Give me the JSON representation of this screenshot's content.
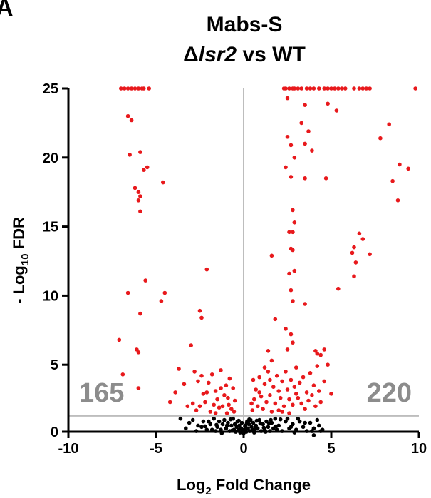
{
  "panel_label": "A",
  "chart_data": {
    "type": "scatter",
    "title_line1": "Mabs-S",
    "title_line2_prefix": "Δ",
    "title_line2_gene": "lsr2",
    "title_line2_suffix": " vs WT",
    "xlabel_main": "Log",
    "xlabel_sub": "2",
    "xlabel_rest": " Fold Change",
    "ylabel_main": "- Log",
    "ylabel_sub": "10",
    "ylabel_rest": " FDR",
    "xlim": [
      -10,
      10
    ],
    "ylim": [
      0,
      25
    ],
    "x_ticks": [
      -10,
      -5,
      0,
      5,
      10
    ],
    "y_ticks": [
      0,
      5,
      10,
      15,
      20,
      25
    ],
    "thresholds": {
      "fdr_line": 1.3,
      "fc_line": 0
    },
    "count_down": "165",
    "count_up": "220",
    "colors": {
      "significant": "#e8191c",
      "not_significant": "#000000",
      "threshold": "#bdbdbd"
    },
    "series": [
      {
        "color": "significant",
        "points": [
          [
            -7.0,
            25
          ],
          [
            -6.8,
            25
          ],
          [
            -6.6,
            25
          ],
          [
            -6.4,
            25
          ],
          [
            -6.2,
            25
          ],
          [
            -6.0,
            25
          ],
          [
            -5.8,
            25
          ],
          [
            -5.7,
            25
          ],
          [
            -5.4,
            25
          ],
          [
            -6.6,
            23.0
          ],
          [
            -6.4,
            22.7
          ],
          [
            -6.5,
            20.2
          ],
          [
            -5.9,
            20.4
          ],
          [
            -5.5,
            19.3
          ],
          [
            -5.7,
            19.1
          ],
          [
            -4.6,
            18.2
          ],
          [
            -6.2,
            17.8
          ],
          [
            -6.0,
            17.5
          ],
          [
            -5.9,
            17.2
          ],
          [
            -6.0,
            16.9
          ],
          [
            -5.9,
            16.1
          ],
          [
            -5.6,
            11.1
          ],
          [
            -6.6,
            10.2
          ],
          [
            -4.5,
            10.2
          ],
          [
            -4.7,
            9.6
          ],
          [
            -5.9,
            8.7
          ],
          [
            -6.1,
            6.1
          ],
          [
            -6.0,
            5.9
          ],
          [
            -7.1,
            6.8
          ],
          [
            -6.9,
            4.3
          ],
          [
            -6.0,
            3.3
          ],
          [
            -4.2,
            2.3
          ],
          [
            -3.9,
            3.0
          ],
          [
            -3.7,
            4.7
          ],
          [
            -3.4,
            3.6
          ],
          [
            -3.0,
            6.4
          ],
          [
            -2.4,
            8.4
          ],
          [
            -2.5,
            8.9
          ],
          [
            -2.1,
            11.9
          ],
          [
            -2.8,
            4.5
          ],
          [
            -2.6,
            3.8
          ],
          [
            -2.3,
            2.9
          ],
          [
            -2.0,
            3.7
          ],
          [
            -1.8,
            4.3
          ],
          [
            -1.6,
            3.1
          ],
          [
            -1.5,
            2.5
          ],
          [
            -1.3,
            4.6
          ],
          [
            -1.2,
            2.0
          ],
          [
            -1.0,
            3.5
          ],
          [
            -0.9,
            2.6
          ],
          [
            -0.8,
            4.0
          ],
          [
            -0.7,
            1.8
          ],
          [
            -0.6,
            3.3
          ],
          [
            -2.9,
            2.2
          ],
          [
            -2.7,
            1.7
          ],
          [
            -2.2,
            2.3
          ],
          [
            -1.9,
            1.6
          ],
          [
            -1.7,
            2.1
          ],
          [
            -1.4,
            1.9
          ],
          [
            -1.1,
            2.8
          ],
          [
            -0.95,
            1.5
          ],
          [
            -2.5,
            2.0
          ],
          [
            -1.6,
            1.5
          ],
          [
            -0.5,
            2.4
          ],
          [
            -0.55,
            1.6
          ],
          [
            -2.1,
            3.0
          ],
          [
            -1.3,
            3.3
          ],
          [
            -0.85,
            2.1
          ],
          [
            -3.2,
            2.0
          ],
          [
            -2.4,
            4.2
          ],
          [
            2.3,
            25
          ],
          [
            2.4,
            25
          ],
          [
            2.6,
            25
          ],
          [
            2.8,
            25
          ],
          [
            2.9,
            25
          ],
          [
            3.1,
            25
          ],
          [
            3.3,
            25
          ],
          [
            3.6,
            25
          ],
          [
            3.8,
            25
          ],
          [
            4.0,
            25
          ],
          [
            4.3,
            25
          ],
          [
            4.6,
            25
          ],
          [
            4.8,
            25
          ],
          [
            5.0,
            25
          ],
          [
            5.2,
            25
          ],
          [
            5.4,
            25
          ],
          [
            5.6,
            25
          ],
          [
            5.8,
            25
          ],
          [
            6.3,
            25
          ],
          [
            6.6,
            25
          ],
          [
            6.8,
            25
          ],
          [
            7.0,
            25
          ],
          [
            7.2,
            25
          ],
          [
            9.8,
            25
          ],
          [
            2.5,
            24.3
          ],
          [
            3.5,
            23.8
          ],
          [
            4.8,
            23.9
          ],
          [
            5.3,
            23.4
          ],
          [
            3.3,
            22.5
          ],
          [
            3.7,
            21.9
          ],
          [
            3.5,
            21.0
          ],
          [
            2.5,
            21.5
          ],
          [
            2.7,
            20.9
          ],
          [
            3.9,
            20.5
          ],
          [
            2.9,
            20.0
          ],
          [
            2.4,
            19.3
          ],
          [
            2.7,
            18.6
          ],
          [
            3.5,
            18.5
          ],
          [
            4.7,
            18.5
          ],
          [
            2.8,
            16.2
          ],
          [
            2.9,
            15.3
          ],
          [
            2.6,
            14.6
          ],
          [
            2.8,
            14.6
          ],
          [
            2.7,
            13.4
          ],
          [
            2.8,
            13.3
          ],
          [
            1.6,
            12.9
          ],
          [
            2.9,
            11.8
          ],
          [
            2.6,
            11.6
          ],
          [
            2.7,
            10.4
          ],
          [
            2.8,
            9.6
          ],
          [
            3.5,
            9.4
          ],
          [
            1.8,
            8.3
          ],
          [
            2.4,
            7.6
          ],
          [
            2.7,
            7.2
          ],
          [
            2.8,
            6.6
          ],
          [
            2.5,
            6.1
          ],
          [
            1.4,
            6.0
          ],
          [
            1.6,
            5.3
          ],
          [
            4.1,
            6.0
          ],
          [
            4.4,
            5.7
          ],
          [
            4.2,
            5.8
          ],
          [
            4.6,
            6.1
          ],
          [
            5.4,
            10.5
          ],
          [
            6.2,
            13.1
          ],
          [
            6.3,
            13.5
          ],
          [
            6.6,
            14.5
          ],
          [
            6.8,
            14.1
          ],
          [
            6.4,
            12.4
          ],
          [
            6.3,
            11.4
          ],
          [
            7.2,
            13.0
          ],
          [
            7.8,
            21.4
          ],
          [
            8.3,
            22.4
          ],
          [
            8.5,
            18.3
          ],
          [
            8.9,
            19.5
          ],
          [
            9.4,
            19.2
          ],
          [
            8.8,
            16.9
          ],
          [
            1.4,
            4.5
          ],
          [
            1.5,
            3.9
          ],
          [
            1.7,
            3.4
          ],
          [
            1.9,
            4.2
          ],
          [
            2.0,
            3.1
          ],
          [
            2.1,
            2.6
          ],
          [
            2.2,
            3.8
          ],
          [
            2.3,
            2.0
          ],
          [
            2.4,
            4.5
          ],
          [
            2.5,
            3.2
          ],
          [
            2.6,
            2.5
          ],
          [
            2.7,
            3.9
          ],
          [
            2.8,
            2.1
          ],
          [
            2.9,
            3.4
          ],
          [
            3.0,
            4.8
          ],
          [
            3.1,
            2.6
          ],
          [
            3.2,
            3.7
          ],
          [
            3.3,
            2.2
          ],
          [
            3.4,
            4.1
          ],
          [
            3.5,
            1.8
          ],
          [
            3.6,
            3.0
          ],
          [
            3.7,
            2.4
          ],
          [
            3.8,
            4.4
          ],
          [
            3.9,
            2.8
          ],
          [
            4.0,
            3.5
          ],
          [
            4.1,
            2.0
          ],
          [
            4.2,
            4.9
          ],
          [
            4.3,
            3.1
          ],
          [
            4.4,
            2.3
          ],
          [
            4.6,
            3.8
          ],
          [
            4.8,
            5.0
          ],
          [
            5.0,
            2.9
          ],
          [
            1.0,
            2.7
          ],
          [
            1.1,
            1.8
          ],
          [
            1.2,
            3.6
          ],
          [
            1.3,
            2.3
          ],
          [
            0.9,
            4.1
          ],
          [
            0.8,
            2.0
          ],
          [
            0.7,
            3.2
          ],
          [
            0.6,
            2.5
          ],
          [
            0.5,
            1.7
          ],
          [
            0.55,
            3.9
          ],
          [
            0.45,
            2.2
          ],
          [
            1.6,
            1.6
          ],
          [
            1.8,
            2.2
          ],
          [
            2.0,
            1.7
          ],
          [
            2.6,
            1.5
          ],
          [
            1.5,
            2.8
          ],
          [
            1.2,
            4.8
          ],
          [
            0.9,
            3.0
          ],
          [
            3.0,
            2.9
          ],
          [
            2.2,
            1.6
          ]
        ]
      },
      {
        "color": "not_significant",
        "points": [
          [
            -2.9,
            1.0
          ],
          [
            -2.6,
            0.6
          ],
          [
            -2.3,
            0.9
          ],
          [
            -2.1,
            0.3
          ],
          [
            -1.9,
            0.7
          ],
          [
            -1.7,
            1.1
          ],
          [
            -1.6,
            0.2
          ],
          [
            -1.5,
            0.5
          ],
          [
            -1.4,
            0.9
          ],
          [
            -1.3,
            0.3
          ],
          [
            -1.2,
            0.7
          ],
          [
            -1.1,
            1.0
          ],
          [
            -1.0,
            0.4
          ],
          [
            -0.9,
            0.8
          ],
          [
            -0.8,
            0.2
          ],
          [
            -0.7,
            0.6
          ],
          [
            -0.6,
            1.1
          ],
          [
            -0.55,
            0.3
          ],
          [
            -0.5,
            0.7
          ],
          [
            -0.45,
            0.15
          ],
          [
            -0.4,
            0.5
          ],
          [
            -0.35,
            0.9
          ],
          [
            -0.3,
            0.3
          ],
          [
            -0.25,
            0.6
          ],
          [
            -0.2,
            0.1
          ],
          [
            -0.15,
            0.4
          ],
          [
            -0.1,
            0.8
          ],
          [
            -0.05,
            0.2
          ],
          [
            0.0,
            0.05
          ],
          [
            0.05,
            0.3
          ],
          [
            0.1,
            0.6
          ],
          [
            0.15,
            0.15
          ],
          [
            0.2,
            0.9
          ],
          [
            0.25,
            0.4
          ],
          [
            0.3,
            0.7
          ],
          [
            0.35,
            0.2
          ],
          [
            0.4,
            1.0
          ],
          [
            0.45,
            0.5
          ],
          [
            0.5,
            0.3
          ],
          [
            0.55,
            0.8
          ],
          [
            0.6,
            0.1
          ],
          [
            0.7,
            0.6
          ],
          [
            0.8,
            0.4
          ],
          [
            0.9,
            1.0
          ],
          [
            1.0,
            0.2
          ],
          [
            1.1,
            0.7
          ],
          [
            1.2,
            0.3
          ],
          [
            1.3,
            0.9
          ],
          [
            1.4,
            0.5
          ],
          [
            1.5,
            0.2
          ],
          [
            1.6,
            0.8
          ],
          [
            1.7,
            0.4
          ],
          [
            1.8,
            1.1
          ],
          [
            1.9,
            0.3
          ],
          [
            2.0,
            0.6
          ],
          [
            2.2,
            0.2
          ],
          [
            2.4,
            0.9
          ],
          [
            2.6,
            0.4
          ],
          [
            2.8,
            0.7
          ],
          [
            3.0,
            0.3
          ],
          [
            3.2,
            0.9
          ],
          [
            3.4,
            0.5
          ],
          [
            3.6,
            0.2
          ],
          [
            3.8,
            0.8
          ],
          [
            4.0,
            0.4
          ],
          [
            4.2,
            1.0
          ],
          [
            4.4,
            0.2
          ],
          [
            2.5,
            1.1
          ],
          [
            -3.3,
            0.4
          ],
          [
            -3.1,
            0.8
          ],
          [
            -2.7,
            0.2
          ],
          [
            -2.4,
            0.5
          ],
          [
            -2.0,
            0.9
          ],
          [
            -1.8,
            0.3
          ],
          [
            -0.95,
            0.6
          ],
          [
            -0.65,
            0.25
          ],
          [
            -0.28,
            0.95
          ],
          [
            0.08,
            0.55
          ],
          [
            0.32,
            1.05
          ],
          [
            0.65,
            0.35
          ],
          [
            0.95,
            0.75
          ],
          [
            1.25,
            0.15
          ],
          [
            1.55,
            1.0
          ],
          [
            1.85,
            0.55
          ],
          [
            2.1,
            1.05
          ],
          [
            2.7,
            0.5
          ],
          [
            3.1,
            1.1
          ],
          [
            3.5,
            0.8
          ],
          [
            3.9,
            0.2
          ],
          [
            4.3,
            0.6
          ],
          [
            2.9,
            0.1
          ],
          [
            -1.25,
            0.05
          ],
          [
            -0.75,
            1.05
          ],
          [
            -0.12,
            0.35
          ],
          [
            0.18,
            0.75
          ],
          [
            0.75,
            0.95
          ],
          [
            1.15,
            0.45
          ],
          [
            1.45,
            0.75
          ],
          [
            -1.55,
            0.65
          ],
          [
            -2.2,
            0.55
          ],
          [
            -3.6,
            1.1
          ],
          [
            4.0,
            -0.1
          ],
          [
            4.5,
            0.3
          ]
        ]
      }
    ]
  }
}
